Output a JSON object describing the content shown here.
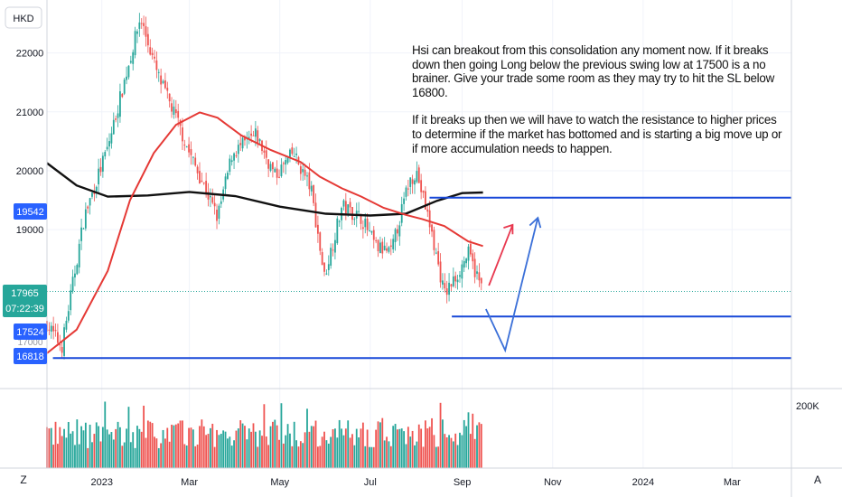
{
  "currency": "HKD",
  "volume_scale_label": "200K",
  "corner_left": "Z",
  "corner_right": "A",
  "annotation": {
    "paragraph1": "Hsi can breakout from this consolidation any moment now. If it breaks down then going Long below the previous swing low at 17500 is a no brainer. Give your trade some room as they may try to hit the SL below 16800.",
    "paragraph2": "If it breaks up then we will have to watch the resistance to higher prices to determine if the market has bottomed and is starting a big move up or if more accumulation needs to happen."
  },
  "price_badges": {
    "last_price": "17965",
    "countdown": "07:22:39",
    "level_upper": "19542",
    "level_swing_low": "17524",
    "level_stop": "16818",
    "hidden_label": "17000"
  },
  "colors": {
    "up": "#26a69a",
    "down": "#ef5350",
    "ma_red": "#e53935",
    "ma_black": "#111111",
    "level_blue": "#1848d8",
    "badge_blue": "#2962ff",
    "badge_green": "#26a69a",
    "arrow_red": "#e8384f",
    "arrow_blue": "#3a6fd8"
  },
  "chart_data": {
    "type": "candlestick",
    "symbol_currency": "HKD",
    "y_ticks": [
      19000,
      20000,
      21000,
      22000
    ],
    "y_range": [
      16300,
      22900
    ],
    "x_ticks": [
      "2023",
      "Mar",
      "May",
      "Jul",
      "Sep",
      "Nov",
      "2024",
      "Mar"
    ],
    "x_range": [
      "2022-11-25",
      "2024-04-10"
    ],
    "levels": [
      19542,
      17524,
      16818
    ],
    "price_path": [
      [
        "2022-11-25",
        17400
      ],
      [
        "2022-12-05",
        17000
      ],
      [
        "2022-12-20",
        19200
      ],
      [
        "2023-01-05",
        20400
      ],
      [
        "2023-01-15",
        21400
      ],
      [
        "2023-01-27",
        22600
      ],
      [
        "2023-02-08",
        21600
      ],
      [
        "2023-02-20",
        20900
      ],
      [
        "2023-03-01",
        20300
      ],
      [
        "2023-03-10",
        19800
      ],
      [
        "2023-03-20",
        19200
      ],
      [
        "2023-03-30",
        20300
      ],
      [
        "2023-04-15",
        20600
      ],
      [
        "2023-04-28",
        19900
      ],
      [
        "2023-05-10",
        20300
      ],
      [
        "2023-05-22",
        19700
      ],
      [
        "2023-05-31",
        18200
      ],
      [
        "2023-06-12",
        19400
      ],
      [
        "2023-06-25",
        19200
      ],
      [
        "2023-07-05",
        18700
      ],
      [
        "2023-07-15",
        18600
      ],
      [
        "2023-07-27",
        19800
      ],
      [
        "2023-08-01",
        20000
      ],
      [
        "2023-08-10",
        19100
      ],
      [
        "2023-08-20",
        17900
      ],
      [
        "2023-08-28",
        18200
      ],
      [
        "2023-09-05",
        18600
      ],
      [
        "2023-09-15",
        17950
      ]
    ],
    "ma_fast": [
      [
        "2022-11-25",
        16900
      ],
      [
        "2022-12-15",
        17300
      ],
      [
        "2023-01-05",
        18300
      ],
      [
        "2023-01-20",
        19500
      ],
      [
        "2023-02-05",
        20300
      ],
      [
        "2023-02-20",
        20780
      ],
      [
        "2023-03-08",
        20990
      ],
      [
        "2023-03-20",
        20900
      ],
      [
        "2023-04-05",
        20600
      ],
      [
        "2023-04-25",
        20350
      ],
      [
        "2023-05-15",
        20150
      ],
      [
        "2023-05-28",
        19900
      ],
      [
        "2023-06-12",
        19700
      ],
      [
        "2023-06-25",
        19560
      ],
      [
        "2023-07-10",
        19370
      ],
      [
        "2023-07-25",
        19250
      ],
      [
        "2023-08-05",
        19180
      ],
      [
        "2023-08-20",
        19060
      ],
      [
        "2023-09-05",
        18800
      ],
      [
        "2023-09-15",
        18720
      ]
    ],
    "ma_slow": [
      [
        "2022-11-25",
        20130
      ],
      [
        "2022-12-15",
        19750
      ],
      [
        "2023-01-05",
        19560
      ],
      [
        "2023-02-01",
        19580
      ],
      [
        "2023-03-01",
        19640
      ],
      [
        "2023-04-01",
        19570
      ],
      [
        "2023-05-01",
        19390
      ],
      [
        "2023-06-01",
        19270
      ],
      [
        "2023-07-01",
        19240
      ],
      [
        "2023-07-25",
        19270
      ],
      [
        "2023-08-15",
        19490
      ],
      [
        "2023-09-01",
        19620
      ],
      [
        "2023-09-15",
        19630
      ]
    ]
  }
}
